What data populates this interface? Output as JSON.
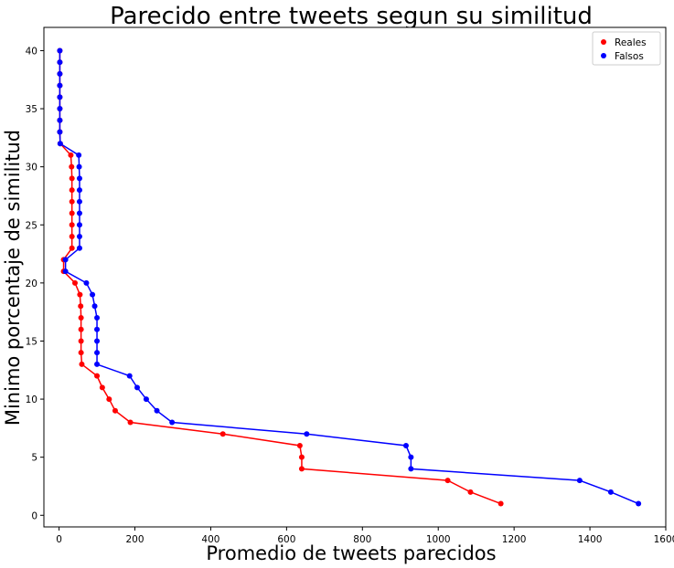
{
  "chart_data": {
    "type": "line",
    "title": "Parecido entre tweets segun su similitud",
    "xlabel": "Promedio de tweets parecidos",
    "ylabel": "Minimo porcentaje de similitud",
    "xlim": [
      -40,
      1600
    ],
    "ylim": [
      -1,
      42
    ],
    "xticks": [
      0,
      200,
      400,
      600,
      800,
      1000,
      1200,
      1400,
      1600
    ],
    "yticks": [
      0,
      5,
      10,
      15,
      20,
      25,
      30,
      35,
      40
    ],
    "xtick_labels": [
      "0",
      "200",
      "400",
      "600",
      "800",
      "1000",
      "1200",
      "1400",
      "1600"
    ],
    "ytick_labels": [
      "0",
      "5",
      "10",
      "15",
      "20",
      "25",
      "30",
      "35",
      "40"
    ],
    "grid": false,
    "legend_position": "top-right",
    "series": [
      {
        "name": "Reales",
        "color": "#ff0000",
        "points": [
          [
            1165,
            1
          ],
          [
            1085,
            2
          ],
          [
            1025,
            3
          ],
          [
            640,
            4
          ],
          [
            640,
            5
          ],
          [
            635,
            6
          ],
          [
            432,
            7
          ],
          [
            188,
            8
          ],
          [
            148,
            9
          ],
          [
            132,
            10
          ],
          [
            114,
            11
          ],
          [
            100,
            12
          ],
          [
            60,
            13
          ],
          [
            58,
            14
          ],
          [
            58,
            15
          ],
          [
            58,
            16
          ],
          [
            58,
            17
          ],
          [
            57,
            18
          ],
          [
            55,
            19
          ],
          [
            42,
            20
          ],
          [
            12,
            21
          ],
          [
            12,
            22
          ],
          [
            34,
            23
          ],
          [
            34,
            24
          ],
          [
            34,
            25
          ],
          [
            34,
            26
          ],
          [
            34,
            27
          ],
          [
            34,
            28
          ],
          [
            34,
            29
          ],
          [
            33,
            30
          ],
          [
            31,
            31
          ],
          [
            3,
            32
          ],
          [
            2,
            33
          ],
          [
            2,
            34
          ],
          [
            2,
            35
          ],
          [
            2,
            36
          ],
          [
            2,
            37
          ],
          [
            2,
            38
          ],
          [
            2,
            39
          ],
          [
            2,
            40
          ]
        ]
      },
      {
        "name": "Falsos",
        "color": "#0000ff",
        "points": [
          [
            1528,
            1
          ],
          [
            1455,
            2
          ],
          [
            1373,
            3
          ],
          [
            928,
            4
          ],
          [
            928,
            5
          ],
          [
            915,
            6
          ],
          [
            653,
            7
          ],
          [
            298,
            8
          ],
          [
            258,
            9
          ],
          [
            230,
            10
          ],
          [
            206,
            11
          ],
          [
            186,
            12
          ],
          [
            100,
            13
          ],
          [
            100,
            14
          ],
          [
            100,
            15
          ],
          [
            100,
            16
          ],
          [
            100,
            17
          ],
          [
            94,
            18
          ],
          [
            88,
            19
          ],
          [
            72,
            20
          ],
          [
            17,
            21
          ],
          [
            17,
            22
          ],
          [
            54,
            23
          ],
          [
            54,
            24
          ],
          [
            54,
            25
          ],
          [
            54,
            26
          ],
          [
            54,
            27
          ],
          [
            54,
            28
          ],
          [
            54,
            29
          ],
          [
            53,
            30
          ],
          [
            52,
            31
          ],
          [
            3,
            32
          ],
          [
            2,
            33
          ],
          [
            2,
            34
          ],
          [
            2,
            35
          ],
          [
            2,
            36
          ],
          [
            2,
            37
          ],
          [
            2,
            38
          ],
          [
            2,
            39
          ],
          [
            2,
            40
          ]
        ]
      }
    ]
  }
}
